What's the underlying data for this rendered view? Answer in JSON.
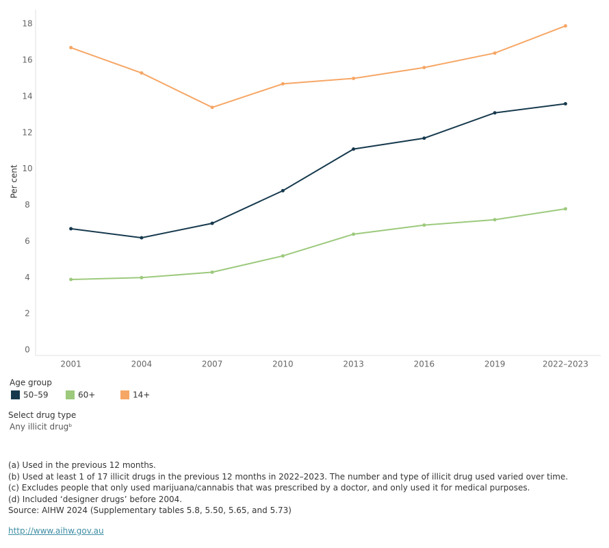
{
  "chart_data": {
    "type": "line",
    "y_label": "Per cent",
    "categories": [
      "2001",
      "2004",
      "2007",
      "2010",
      "2013",
      "2016",
      "2019",
      "2022–2023"
    ],
    "series": [
      {
        "name": "50–59",
        "color": "#16394d",
        "values": [
          6.7,
          6.2,
          7.0,
          8.8,
          11.1,
          11.7,
          13.1,
          13.6
        ]
      },
      {
        "name": "60+",
        "color": "#9cc97c",
        "values": [
          3.9,
          4.0,
          4.3,
          5.2,
          6.4,
          6.9,
          7.2,
          7.8
        ]
      },
      {
        "name": "14+",
        "color": "#f6a665",
        "values": [
          16.7,
          15.3,
          13.4,
          14.7,
          15.0,
          15.6,
          16.4,
          17.9
        ]
      }
    ],
    "legend_title": "Age group",
    "ylim": [
      -0.3,
      18.8
    ],
    "yticks": [
      0,
      2,
      4,
      6,
      8,
      10,
      12,
      14,
      16,
      18
    ],
    "grid": false
  },
  "filter": {
    "title": "Select drug type",
    "value": "Any illicit drugᵇ"
  },
  "footnotes": [
    "(a) Used in the previous 12 months.",
    "(b) Used at least 1 of 17 illicit drugs in the previous 12 months in 2022–2023. The number and type of illicit drug used varied over time.",
    "(c) Excludes people that only used marijuana/cannabis that was prescribed by a doctor, and only used it for medical purposes.",
    "(d) Included ‘designer drugs’ before 2004.",
    "Source: AIHW 2024 (Supplementary tables 5.8, 5.50, 5.65, and 5.73)"
  ],
  "link": "http://www.aihw.gov.au"
}
